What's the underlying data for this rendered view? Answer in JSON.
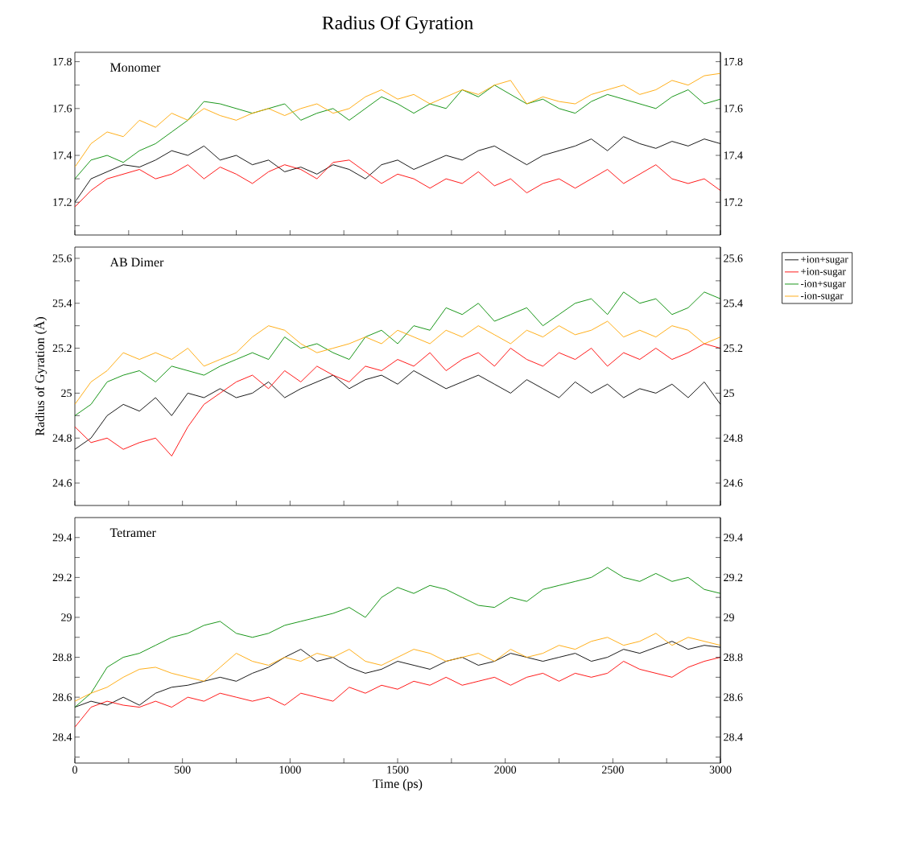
{
  "chart_data": [
    {
      "type": "line",
      "title": "Radius Of Gyration",
      "annotations": [
        "Monomer"
      ],
      "tick_labels": "y",
      "x": [
        0,
        75,
        150,
        225,
        300,
        375,
        450,
        525,
        600,
        675,
        750,
        825,
        900,
        975,
        1050,
        1125,
        1200,
        1275,
        1350,
        1425,
        1500,
        1575,
        1650,
        1725,
        1800,
        1875,
        1950,
        2025,
        2100,
        2175,
        2250,
        2325,
        2400,
        2475,
        2550,
        2625,
        2700,
        2775,
        2850,
        2925,
        3000
      ],
      "xlim": [
        0,
        3000
      ],
      "xticks": [
        0,
        {
          "value": 250,
          "label": null
        },
        500,
        {
          "value": 750,
          "label": null
        },
        1000,
        {
          "value": 1250,
          "label": null
        },
        1500,
        {
          "value": 1750,
          "label": null
        },
        2000,
        {
          "value": 2250,
          "label": null
        },
        2500,
        {
          "value": 2750,
          "label": null
        },
        3000
      ],
      "ylim": [
        17.06,
        17.84
      ],
      "yticks": [
        {
          "value": 17.1,
          "label": null
        },
        17.2,
        {
          "value": 17.3,
          "label": null
        },
        17.4,
        {
          "value": 17.5,
          "label": null
        },
        17.6,
        {
          "value": 17.7,
          "label": null
        },
        17.8
      ],
      "y2lim": [
        17.06,
        17.84
      ],
      "y2ticks": [
        {
          "value": 17.1,
          "label": null
        },
        17.2,
        {
          "value": 17.3,
          "label": null
        },
        17.4,
        {
          "value": 17.5,
          "label": null
        },
        17.6,
        {
          "value": 17.7,
          "label": null
        },
        17.8
      ],
      "series": [
        {
          "color": "#000000",
          "values": [
            17.2,
            17.3,
            17.33,
            17.36,
            17.35,
            17.38,
            17.42,
            17.4,
            17.44,
            17.38,
            17.4,
            17.36,
            17.38,
            17.33,
            17.35,
            17.32,
            17.36,
            17.34,
            17.3,
            17.36,
            17.38,
            17.34,
            17.37,
            17.4,
            17.38,
            17.42,
            17.44,
            17.4,
            17.36,
            17.4,
            17.42,
            17.44,
            17.47,
            17.42,
            17.48,
            17.45,
            17.43,
            17.46,
            17.44,
            17.47,
            17.45
          ]
        },
        {
          "color": "#ff0000",
          "values": [
            17.18,
            17.25,
            17.3,
            17.32,
            17.34,
            17.3,
            17.32,
            17.36,
            17.3,
            17.35,
            17.32,
            17.28,
            17.33,
            17.36,
            17.34,
            17.3,
            17.37,
            17.38,
            17.33,
            17.28,
            17.32,
            17.3,
            17.26,
            17.3,
            17.28,
            17.33,
            17.27,
            17.3,
            17.24,
            17.28,
            17.3,
            17.26,
            17.3,
            17.34,
            17.28,
            17.32,
            17.36,
            17.3,
            17.28,
            17.3,
            17.25
          ]
        },
        {
          "color": "#008b00",
          "values": [
            17.3,
            17.38,
            17.4,
            17.37,
            17.42,
            17.45,
            17.5,
            17.55,
            17.63,
            17.62,
            17.6,
            17.58,
            17.6,
            17.62,
            17.55,
            17.58,
            17.6,
            17.55,
            17.6,
            17.65,
            17.62,
            17.58,
            17.62,
            17.6,
            17.68,
            17.65,
            17.7,
            17.66,
            17.62,
            17.64,
            17.6,
            17.58,
            17.63,
            17.66,
            17.64,
            17.62,
            17.6,
            17.65,
            17.68,
            17.62,
            17.64
          ]
        },
        {
          "color": "#ffa500",
          "values": [
            17.35,
            17.45,
            17.5,
            17.48,
            17.55,
            17.52,
            17.58,
            17.55,
            17.6,
            17.57,
            17.55,
            17.58,
            17.6,
            17.57,
            17.6,
            17.62,
            17.58,
            17.6,
            17.65,
            17.68,
            17.64,
            17.66,
            17.62,
            17.65,
            17.68,
            17.66,
            17.7,
            17.72,
            17.62,
            17.65,
            17.63,
            17.62,
            17.66,
            17.68,
            17.7,
            17.66,
            17.68,
            17.72,
            17.7,
            17.74,
            17.75
          ]
        }
      ]
    },
    {
      "type": "line",
      "ylabel": "Radius of Gyration (Å)",
      "annotations": [
        "AB Dimer"
      ],
      "tick_labels": "y",
      "legend": "right",
      "x": [
        0,
        75,
        150,
        225,
        300,
        375,
        450,
        525,
        600,
        675,
        750,
        825,
        900,
        975,
        1050,
        1125,
        1200,
        1275,
        1350,
        1425,
        1500,
        1575,
        1650,
        1725,
        1800,
        1875,
        1950,
        2025,
        2100,
        2175,
        2250,
        2325,
        2400,
        2475,
        2550,
        2625,
        2700,
        2775,
        2850,
        2925,
        3000
      ],
      "xlim": [
        0,
        3000
      ],
      "xticks": [
        0,
        {
          "value": 250,
          "label": null
        },
        500,
        {
          "value": 750,
          "label": null
        },
        1000,
        {
          "value": 1250,
          "label": null
        },
        1500,
        {
          "value": 1750,
          "label": null
        },
        2000,
        {
          "value": 2250,
          "label": null
        },
        2500,
        {
          "value": 2750,
          "label": null
        },
        3000
      ],
      "ylim": [
        24.5,
        25.65
      ],
      "yticks": [
        24.6,
        {
          "value": 24.7,
          "label": null
        },
        24.8,
        {
          "value": 24.9,
          "label": null
        },
        25,
        {
          "value": 25.1,
          "label": null
        },
        25.2,
        {
          "value": 25.3,
          "label": null
        },
        25.4,
        {
          "value": 25.5,
          "label": null
        },
        25.6
      ],
      "y2lim": [
        24.5,
        25.65
      ],
      "y2ticks": [
        24.6,
        {
          "value": 24.7,
          "label": null
        },
        24.8,
        {
          "value": 24.9,
          "label": null
        },
        25,
        {
          "value": 25.1,
          "label": null
        },
        25.2,
        {
          "value": 25.3,
          "label": null
        },
        25.4,
        {
          "value": 25.5,
          "label": null
        },
        25.6
      ],
      "series": [
        {
          "name": "+ion+sugar",
          "color": "#000000",
          "values": [
            24.75,
            24.8,
            24.9,
            24.95,
            24.92,
            24.98,
            24.9,
            25.0,
            24.98,
            25.02,
            24.98,
            25.0,
            25.05,
            24.98,
            25.02,
            25.05,
            25.08,
            25.02,
            25.06,
            25.08,
            25.04,
            25.1,
            25.06,
            25.02,
            25.05,
            25.08,
            25.04,
            25.0,
            25.06,
            25.02,
            24.98,
            25.05,
            25.0,
            25.04,
            24.98,
            25.02,
            25.0,
            25.04,
            24.98,
            25.05,
            24.95
          ]
        },
        {
          "name": "+ion-sugar",
          "color": "#ff0000",
          "values": [
            24.85,
            24.78,
            24.8,
            24.75,
            24.78,
            24.8,
            24.72,
            24.85,
            24.95,
            25.0,
            25.05,
            25.08,
            25.02,
            25.1,
            25.05,
            25.12,
            25.08,
            25.05,
            25.12,
            25.1,
            25.15,
            25.12,
            25.18,
            25.1,
            25.15,
            25.18,
            25.12,
            25.2,
            25.15,
            25.12,
            25.18,
            25.15,
            25.2,
            25.12,
            25.18,
            25.15,
            25.2,
            25.15,
            25.18,
            25.22,
            25.2
          ]
        },
        {
          "name": "-ion+sugar",
          "color": "#008b00",
          "values": [
            24.9,
            24.95,
            25.05,
            25.08,
            25.1,
            25.05,
            25.12,
            25.1,
            25.08,
            25.12,
            25.15,
            25.18,
            25.15,
            25.25,
            25.2,
            25.22,
            25.18,
            25.15,
            25.25,
            25.28,
            25.22,
            25.3,
            25.28,
            25.38,
            25.35,
            25.4,
            25.32,
            25.35,
            25.38,
            25.3,
            25.35,
            25.4,
            25.42,
            25.35,
            25.45,
            25.4,
            25.42,
            25.35,
            25.38,
            25.45,
            25.42
          ]
        },
        {
          "name": "-ion-sugar",
          "color": "#ffa500",
          "values": [
            24.95,
            25.05,
            25.1,
            25.18,
            25.15,
            25.18,
            25.15,
            25.2,
            25.12,
            25.15,
            25.18,
            25.25,
            25.3,
            25.28,
            25.22,
            25.18,
            25.2,
            25.22,
            25.25,
            25.22,
            25.28,
            25.25,
            25.22,
            25.28,
            25.25,
            25.3,
            25.26,
            25.22,
            25.28,
            25.25,
            25.3,
            25.26,
            25.28,
            25.32,
            25.25,
            25.28,
            25.25,
            25.3,
            25.28,
            25.22,
            25.25
          ]
        }
      ]
    },
    {
      "type": "line",
      "xlabel": "Time (ps)",
      "annotations": [
        "Tetramer"
      ],
      "x": [
        0,
        75,
        150,
        225,
        300,
        375,
        450,
        525,
        600,
        675,
        750,
        825,
        900,
        975,
        1050,
        1125,
        1200,
        1275,
        1350,
        1425,
        1500,
        1575,
        1650,
        1725,
        1800,
        1875,
        1950,
        2025,
        2100,
        2175,
        2250,
        2325,
        2400,
        2475,
        2550,
        2625,
        2700,
        2775,
        2850,
        2925,
        3000
      ],
      "xlim": [
        0,
        3000
      ],
      "xticks": [
        0,
        {
          "value": 250,
          "label": null
        },
        500,
        {
          "value": 750,
          "label": null
        },
        1000,
        {
          "value": 1250,
          "label": null
        },
        1500,
        {
          "value": 1750,
          "label": null
        },
        2000,
        {
          "value": 2250,
          "label": null
        },
        2500,
        {
          "value": 2750,
          "label": null
        },
        3000
      ],
      "ylim": [
        28.27,
        29.5
      ],
      "yticks": [
        {
          "value": 28.3,
          "label": null
        },
        28.4,
        {
          "value": 28.5,
          "label": null
        },
        28.6,
        {
          "value": 28.7,
          "label": null
        },
        28.8,
        {
          "value": 28.9,
          "label": null
        },
        29,
        {
          "value": 29.1,
          "label": null
        },
        29.2,
        {
          "value": 29.3,
          "label": null
        },
        29.4
      ],
      "y2lim": [
        28.27,
        29.5
      ],
      "y2ticks": [
        {
          "value": 28.3,
          "label": null
        },
        28.4,
        {
          "value": 28.5,
          "label": null
        },
        28.6,
        {
          "value": 28.7,
          "label": null
        },
        28.8,
        {
          "value": 28.9,
          "label": null
        },
        29,
        {
          "value": 29.1,
          "label": null
        },
        29.2,
        {
          "value": 29.3,
          "label": null
        },
        29.4
      ],
      "series": [
        {
          "color": "#000000",
          "values": [
            28.55,
            28.58,
            28.56,
            28.6,
            28.56,
            28.62,
            28.65,
            28.66,
            28.68,
            28.7,
            28.68,
            28.72,
            28.75,
            28.8,
            28.84,
            28.78,
            28.8,
            28.75,
            28.72,
            28.74,
            28.78,
            28.76,
            28.74,
            28.78,
            28.8,
            28.76,
            28.78,
            28.82,
            28.8,
            28.78,
            28.8,
            28.82,
            28.78,
            28.8,
            28.84,
            28.82,
            28.85,
            28.88,
            28.84,
            28.86,
            28.85
          ]
        },
        {
          "color": "#ff0000",
          "values": [
            28.45,
            28.55,
            28.58,
            28.56,
            28.55,
            28.58,
            28.55,
            28.6,
            28.58,
            28.62,
            28.6,
            28.58,
            28.6,
            28.56,
            28.62,
            28.6,
            28.58,
            28.65,
            28.62,
            28.66,
            28.64,
            28.68,
            28.66,
            28.7,
            28.66,
            28.68,
            28.7,
            28.66,
            28.7,
            28.72,
            28.68,
            28.72,
            28.7,
            28.72,
            28.78,
            28.74,
            28.72,
            28.7,
            28.75,
            28.78,
            28.8
          ]
        },
        {
          "color": "#008b00",
          "values": [
            28.55,
            28.62,
            28.75,
            28.8,
            28.82,
            28.86,
            28.9,
            28.92,
            28.96,
            28.98,
            28.92,
            28.9,
            28.92,
            28.96,
            28.98,
            29.0,
            29.02,
            29.05,
            29.0,
            29.1,
            29.15,
            29.12,
            29.16,
            29.14,
            29.1,
            29.06,
            29.05,
            29.1,
            29.08,
            29.14,
            29.16,
            29.18,
            29.2,
            29.25,
            29.2,
            29.18,
            29.22,
            29.18,
            29.2,
            29.14,
            29.12
          ]
        },
        {
          "color": "#ffa500",
          "values": [
            28.58,
            28.62,
            28.65,
            28.7,
            28.74,
            28.75,
            28.72,
            28.7,
            28.68,
            28.75,
            28.82,
            28.78,
            28.76,
            28.8,
            28.78,
            28.82,
            28.8,
            28.84,
            28.78,
            28.76,
            28.8,
            28.84,
            28.82,
            28.78,
            28.8,
            28.82,
            28.78,
            28.84,
            28.8,
            28.82,
            28.86,
            28.84,
            28.88,
            28.9,
            28.86,
            28.88,
            28.92,
            28.86,
            28.9,
            28.88,
            28.86
          ]
        }
      ]
    }
  ]
}
